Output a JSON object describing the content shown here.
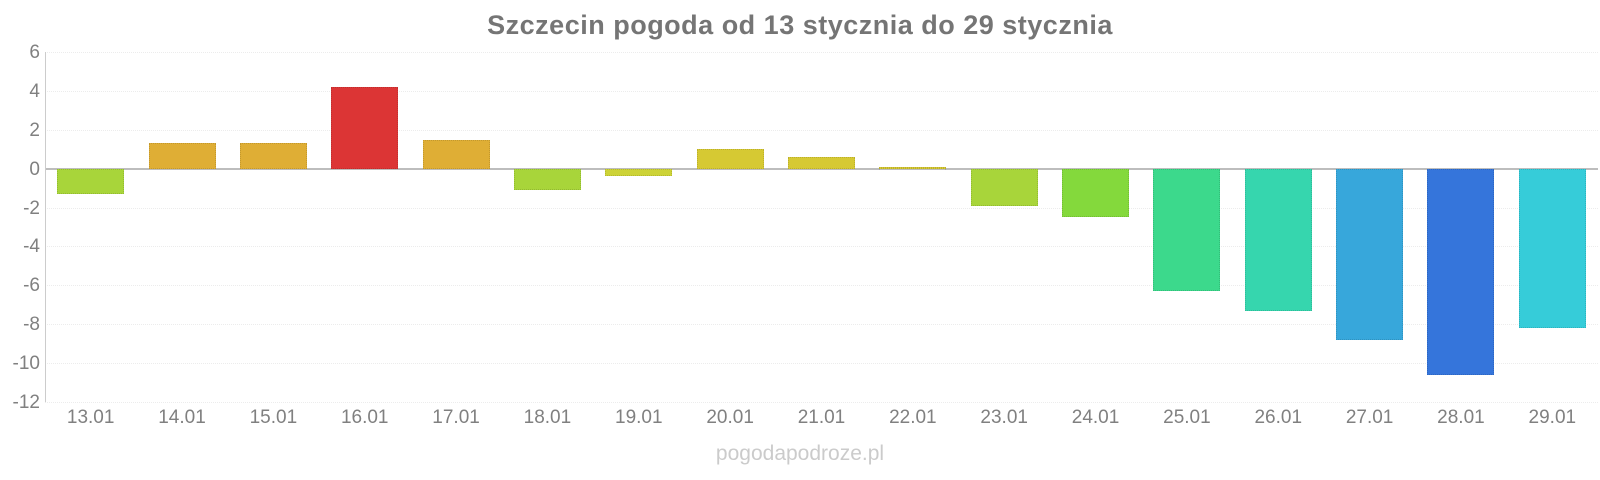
{
  "chart_data": {
    "type": "bar",
    "title": "Szczecin pogoda od 13 stycznia do 29 stycznia",
    "categories": [
      "13.01",
      "14.01",
      "15.01",
      "16.01",
      "17.01",
      "18.01",
      "19.01",
      "20.01",
      "21.01",
      "22.01",
      "23.01",
      "24.01",
      "25.01",
      "26.01",
      "27.01",
      "28.01",
      "29.01"
    ],
    "values": [
      -1.3,
      1.3,
      1.3,
      4.2,
      1.5,
      -1.1,
      -0.4,
      1.0,
      0.6,
      0.1,
      -1.9,
      -2.5,
      -6.3,
      -7.3,
      -8.8,
      -10.6,
      -8.2
    ],
    "bar_colors": [
      "#a8d53a",
      "#dfae35",
      "#dfae35",
      "#dc3535",
      "#dfae35",
      "#a8d53a",
      "#cdd337",
      "#d6c933",
      "#d6c933",
      "#d6c933",
      "#a8d53a",
      "#84d93c",
      "#3cd98c",
      "#36d6ae",
      "#37a7db",
      "#3575db",
      "#36ccd9"
    ],
    "xlabel": "",
    "ylabel": "",
    "ylim": [
      -12,
      6
    ],
    "yticks": [
      6,
      4,
      2,
      0,
      -2,
      -4,
      -6,
      -8,
      -10,
      -12
    ],
    "grid": true,
    "legend": false
  },
  "footer": {
    "watermark": "pogodapodroze.pl"
  },
  "theme": {
    "background": "#ffffff",
    "title_color": "#757575",
    "axis_label_color": "#808080",
    "grid_color": "#ececec",
    "zero_line_color": "#bdbdbd",
    "axis_line_color": "#cccccc",
    "watermark_color": "#cbcbcb"
  }
}
